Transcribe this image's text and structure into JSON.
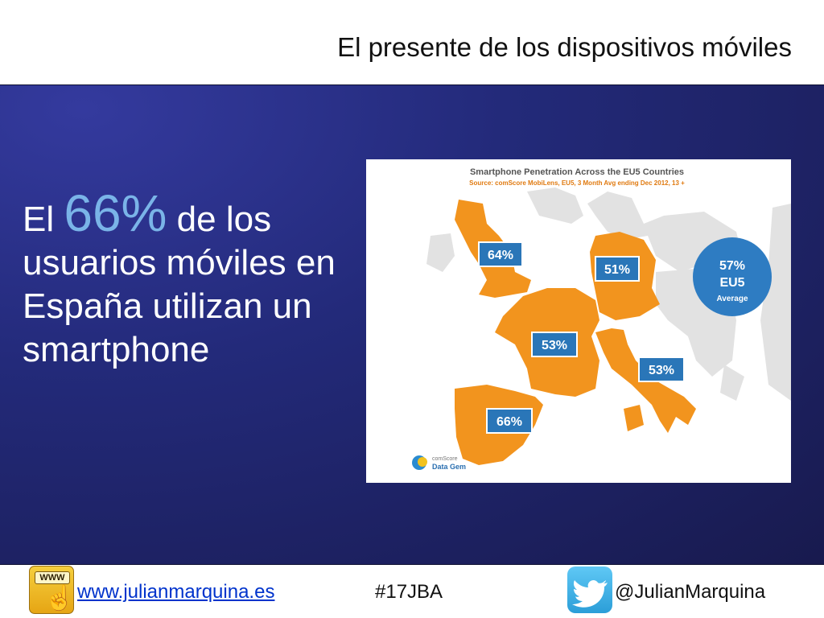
{
  "title": "El presente de los dispositivos móviles",
  "headline": {
    "before": "El ",
    "highlight": "66%",
    "after": " de los usuarios móviles en España utilizan un smartphone"
  },
  "map": {
    "title": "Smartphone Penetration Across the EU5 Countries",
    "source": "Source: comScore MobiLens, EU5, 3 Month Avg ending Dec 2012, 13 +",
    "labels": {
      "uk": "64%",
      "germany": "51%",
      "france": "53%",
      "italy": "53%",
      "spain": "66%"
    },
    "average": {
      "value": "57%",
      "region": "EU5",
      "label": "Average"
    },
    "logo": {
      "line1": "comScore",
      "line2": "Data Gem"
    },
    "colors": {
      "highlight_country": "#f2941e",
      "other_land": "#e2e2e2",
      "label_box": "#2a76b8",
      "average_circle": "#2e7cc2"
    }
  },
  "footer": {
    "www_badge": "WWW",
    "website": "www.julianmarquina.es",
    "hashtag": "#17JBA",
    "twitter": "@JulianMarquina",
    "icons": [
      "www-hand-icon",
      "twitter-bird-icon"
    ]
  }
}
